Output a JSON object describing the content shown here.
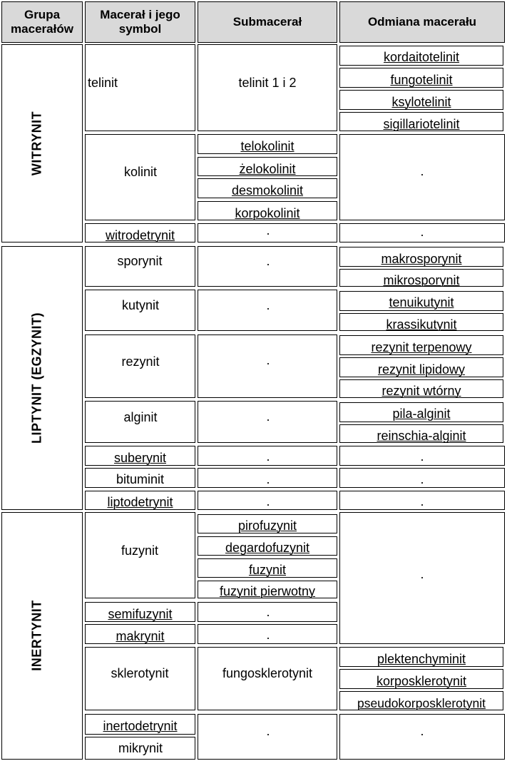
{
  "headers": {
    "group": "Grupa macerałów",
    "maceral": "Macerał i jego symbol",
    "submaceral": "Submacerał",
    "variety": "Odmiana macerału"
  },
  "dot": ".",
  "groups": {
    "witrynit": "WITRYNIT",
    "liptynit": "LIPTYNIT (EGZYNIT)",
    "inertynit": "INERTYNIT"
  },
  "macerals": {
    "telinit": "telinit",
    "kolinit": "kolinit",
    "witrodetrynit": "witrodetrynit",
    "sporynit": "sporynit",
    "kutynit": "kutynit",
    "rezynit": "rezynit",
    "alginit": "alginit",
    "suberynit": "suberynit",
    "bituminit": "bituminit",
    "liptodetrynit": "liptodetrynit",
    "fuzynit": "fuzynit",
    "semifuzynit": "semifuzynit",
    "makrynit": "makrynit",
    "sklerotynit": "sklerotynit",
    "inertodetrynit": "inertodetrynit",
    "mikrynit": "mikrynit"
  },
  "submacerals": {
    "telinit": "telinit 1 i 2",
    "kolinit": [
      "telokolinit",
      "żelokolinit",
      "desmokolinit",
      "korpokolinit"
    ],
    "fuzynit": [
      "pirofuzynit",
      "degardofuzynit",
      "fuzynit",
      "fuzynit pierwotny"
    ],
    "sklerotynit": "fungosklerotynit"
  },
  "varieties": {
    "telinit": [
      "kordaitotelinit",
      "fungotelinit",
      "ksylotelinit",
      "sigillariotelinit"
    ],
    "sporynit": [
      "makrosporynit",
      "mikrosporynit"
    ],
    "kutynit": [
      "tenuikutynit",
      "krassikutynit"
    ],
    "rezynit": [
      "rezynit terpenowy",
      "rezynit lipidowy",
      "rezynit wtórny"
    ],
    "alginit": [
      "pila-alginit",
      "reinschia-alginit"
    ],
    "sklerotynit": [
      "plektenchyminit",
      "korposklerotynit",
      "pseudokorposklerotynit"
    ]
  }
}
